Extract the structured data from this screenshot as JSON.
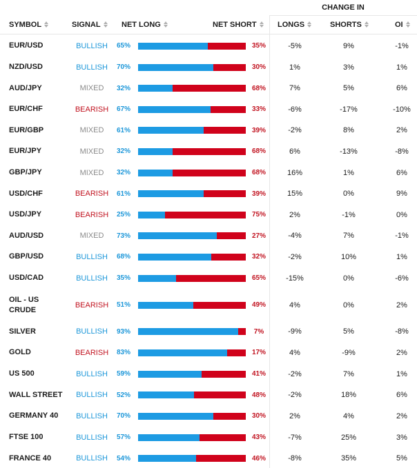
{
  "header": {
    "change_in": "CHANGE IN",
    "columns": {
      "symbol": "SYMBOL",
      "signal": "SIGNAL",
      "net_long": "NET LONG",
      "net_short": "NET SHORT",
      "longs": "LONGS",
      "shorts": "SHORTS",
      "oi": "OI"
    }
  },
  "colors": {
    "net_long_bar": "#1d9be3",
    "net_short_bar": "#d0021b",
    "bullish": "#1d97d9",
    "bearish": "#c1121f",
    "mixed": "#8a8a8a"
  },
  "rows": [
    {
      "symbol": "EUR/USD",
      "signal": "BULLISH",
      "net_long": "65%",
      "net_short": "35%",
      "long_fraction": 0.65,
      "longs": "-5%",
      "shorts": "9%",
      "oi": "-1%"
    },
    {
      "symbol": "NZD/USD",
      "signal": "BULLISH",
      "net_long": "70%",
      "net_short": "30%",
      "long_fraction": 0.7,
      "longs": "1%",
      "shorts": "3%",
      "oi": "1%"
    },
    {
      "symbol": "AUD/JPY",
      "signal": "MIXED",
      "net_long": "32%",
      "net_short": "68%",
      "long_fraction": 0.32,
      "longs": "7%",
      "shorts": "5%",
      "oi": "6%"
    },
    {
      "symbol": "EUR/CHF",
      "signal": "BEARISH",
      "net_long": "67%",
      "net_short": "33%",
      "long_fraction": 0.67,
      "longs": "-6%",
      "shorts": "-17%",
      "oi": "-10%"
    },
    {
      "symbol": "EUR/GBP",
      "signal": "MIXED",
      "net_long": "61%",
      "net_short": "39%",
      "long_fraction": 0.61,
      "longs": "-2%",
      "shorts": "8%",
      "oi": "2%"
    },
    {
      "symbol": "EUR/JPY",
      "signal": "MIXED",
      "net_long": "32%",
      "net_short": "68%",
      "long_fraction": 0.32,
      "longs": "6%",
      "shorts": "-13%",
      "oi": "-8%"
    },
    {
      "symbol": "GBP/JPY",
      "signal": "MIXED",
      "net_long": "32%",
      "net_short": "68%",
      "long_fraction": 0.32,
      "longs": "16%",
      "shorts": "1%",
      "oi": "6%"
    },
    {
      "symbol": "USD/CHF",
      "signal": "BEARISH",
      "net_long": "61%",
      "net_short": "39%",
      "long_fraction": 0.61,
      "longs": "15%",
      "shorts": "0%",
      "oi": "9%"
    },
    {
      "symbol": "USD/JPY",
      "signal": "BEARISH",
      "net_long": "25%",
      "net_short": "75%",
      "long_fraction": 0.25,
      "longs": "2%",
      "shorts": "-1%",
      "oi": "0%"
    },
    {
      "symbol": "AUD/USD",
      "signal": "MIXED",
      "net_long": "73%",
      "net_short": "27%",
      "long_fraction": 0.73,
      "longs": "-4%",
      "shorts": "7%",
      "oi": "-1%"
    },
    {
      "symbol": "GBP/USD",
      "signal": "BULLISH",
      "net_long": "68%",
      "net_short": "32%",
      "long_fraction": 0.68,
      "longs": "-2%",
      "shorts": "10%",
      "oi": "1%"
    },
    {
      "symbol": "USD/CAD",
      "signal": "BULLISH",
      "net_long": "35%",
      "net_short": "65%",
      "long_fraction": 0.35,
      "longs": "-15%",
      "shorts": "0%",
      "oi": "-6%"
    },
    {
      "symbol": "OIL - US CRUDE",
      "signal": "BEARISH",
      "net_long": "51%",
      "net_short": "49%",
      "long_fraction": 0.51,
      "longs": "4%",
      "shorts": "0%",
      "oi": "2%"
    },
    {
      "symbol": "SILVER",
      "signal": "BULLISH",
      "net_long": "93%",
      "net_short": "7%",
      "long_fraction": 0.93,
      "longs": "-9%",
      "shorts": "5%",
      "oi": "-8%"
    },
    {
      "symbol": "GOLD",
      "signal": "BEARISH",
      "net_long": "83%",
      "net_short": "17%",
      "long_fraction": 0.83,
      "longs": "4%",
      "shorts": "-9%",
      "oi": "2%"
    },
    {
      "symbol": "US 500",
      "signal": "BULLISH",
      "net_long": "59%",
      "net_short": "41%",
      "long_fraction": 0.59,
      "longs": "-2%",
      "shorts": "7%",
      "oi": "1%"
    },
    {
      "symbol": "WALL STREET",
      "signal": "BULLISH",
      "net_long": "52%",
      "net_short": "48%",
      "long_fraction": 0.52,
      "longs": "-2%",
      "shorts": "18%",
      "oi": "6%"
    },
    {
      "symbol": "GERMANY 40",
      "signal": "BULLISH",
      "net_long": "70%",
      "net_short": "30%",
      "long_fraction": 0.7,
      "longs": "2%",
      "shorts": "4%",
      "oi": "2%"
    },
    {
      "symbol": "FTSE 100",
      "signal": "BULLISH",
      "net_long": "57%",
      "net_short": "43%",
      "long_fraction": 0.57,
      "longs": "-7%",
      "shorts": "25%",
      "oi": "3%"
    },
    {
      "symbol": "FRANCE 40",
      "signal": "BULLISH",
      "net_long": "54%",
      "net_short": "46%",
      "long_fraction": 0.54,
      "longs": "-8%",
      "shorts": "35%",
      "oi": "5%"
    }
  ]
}
